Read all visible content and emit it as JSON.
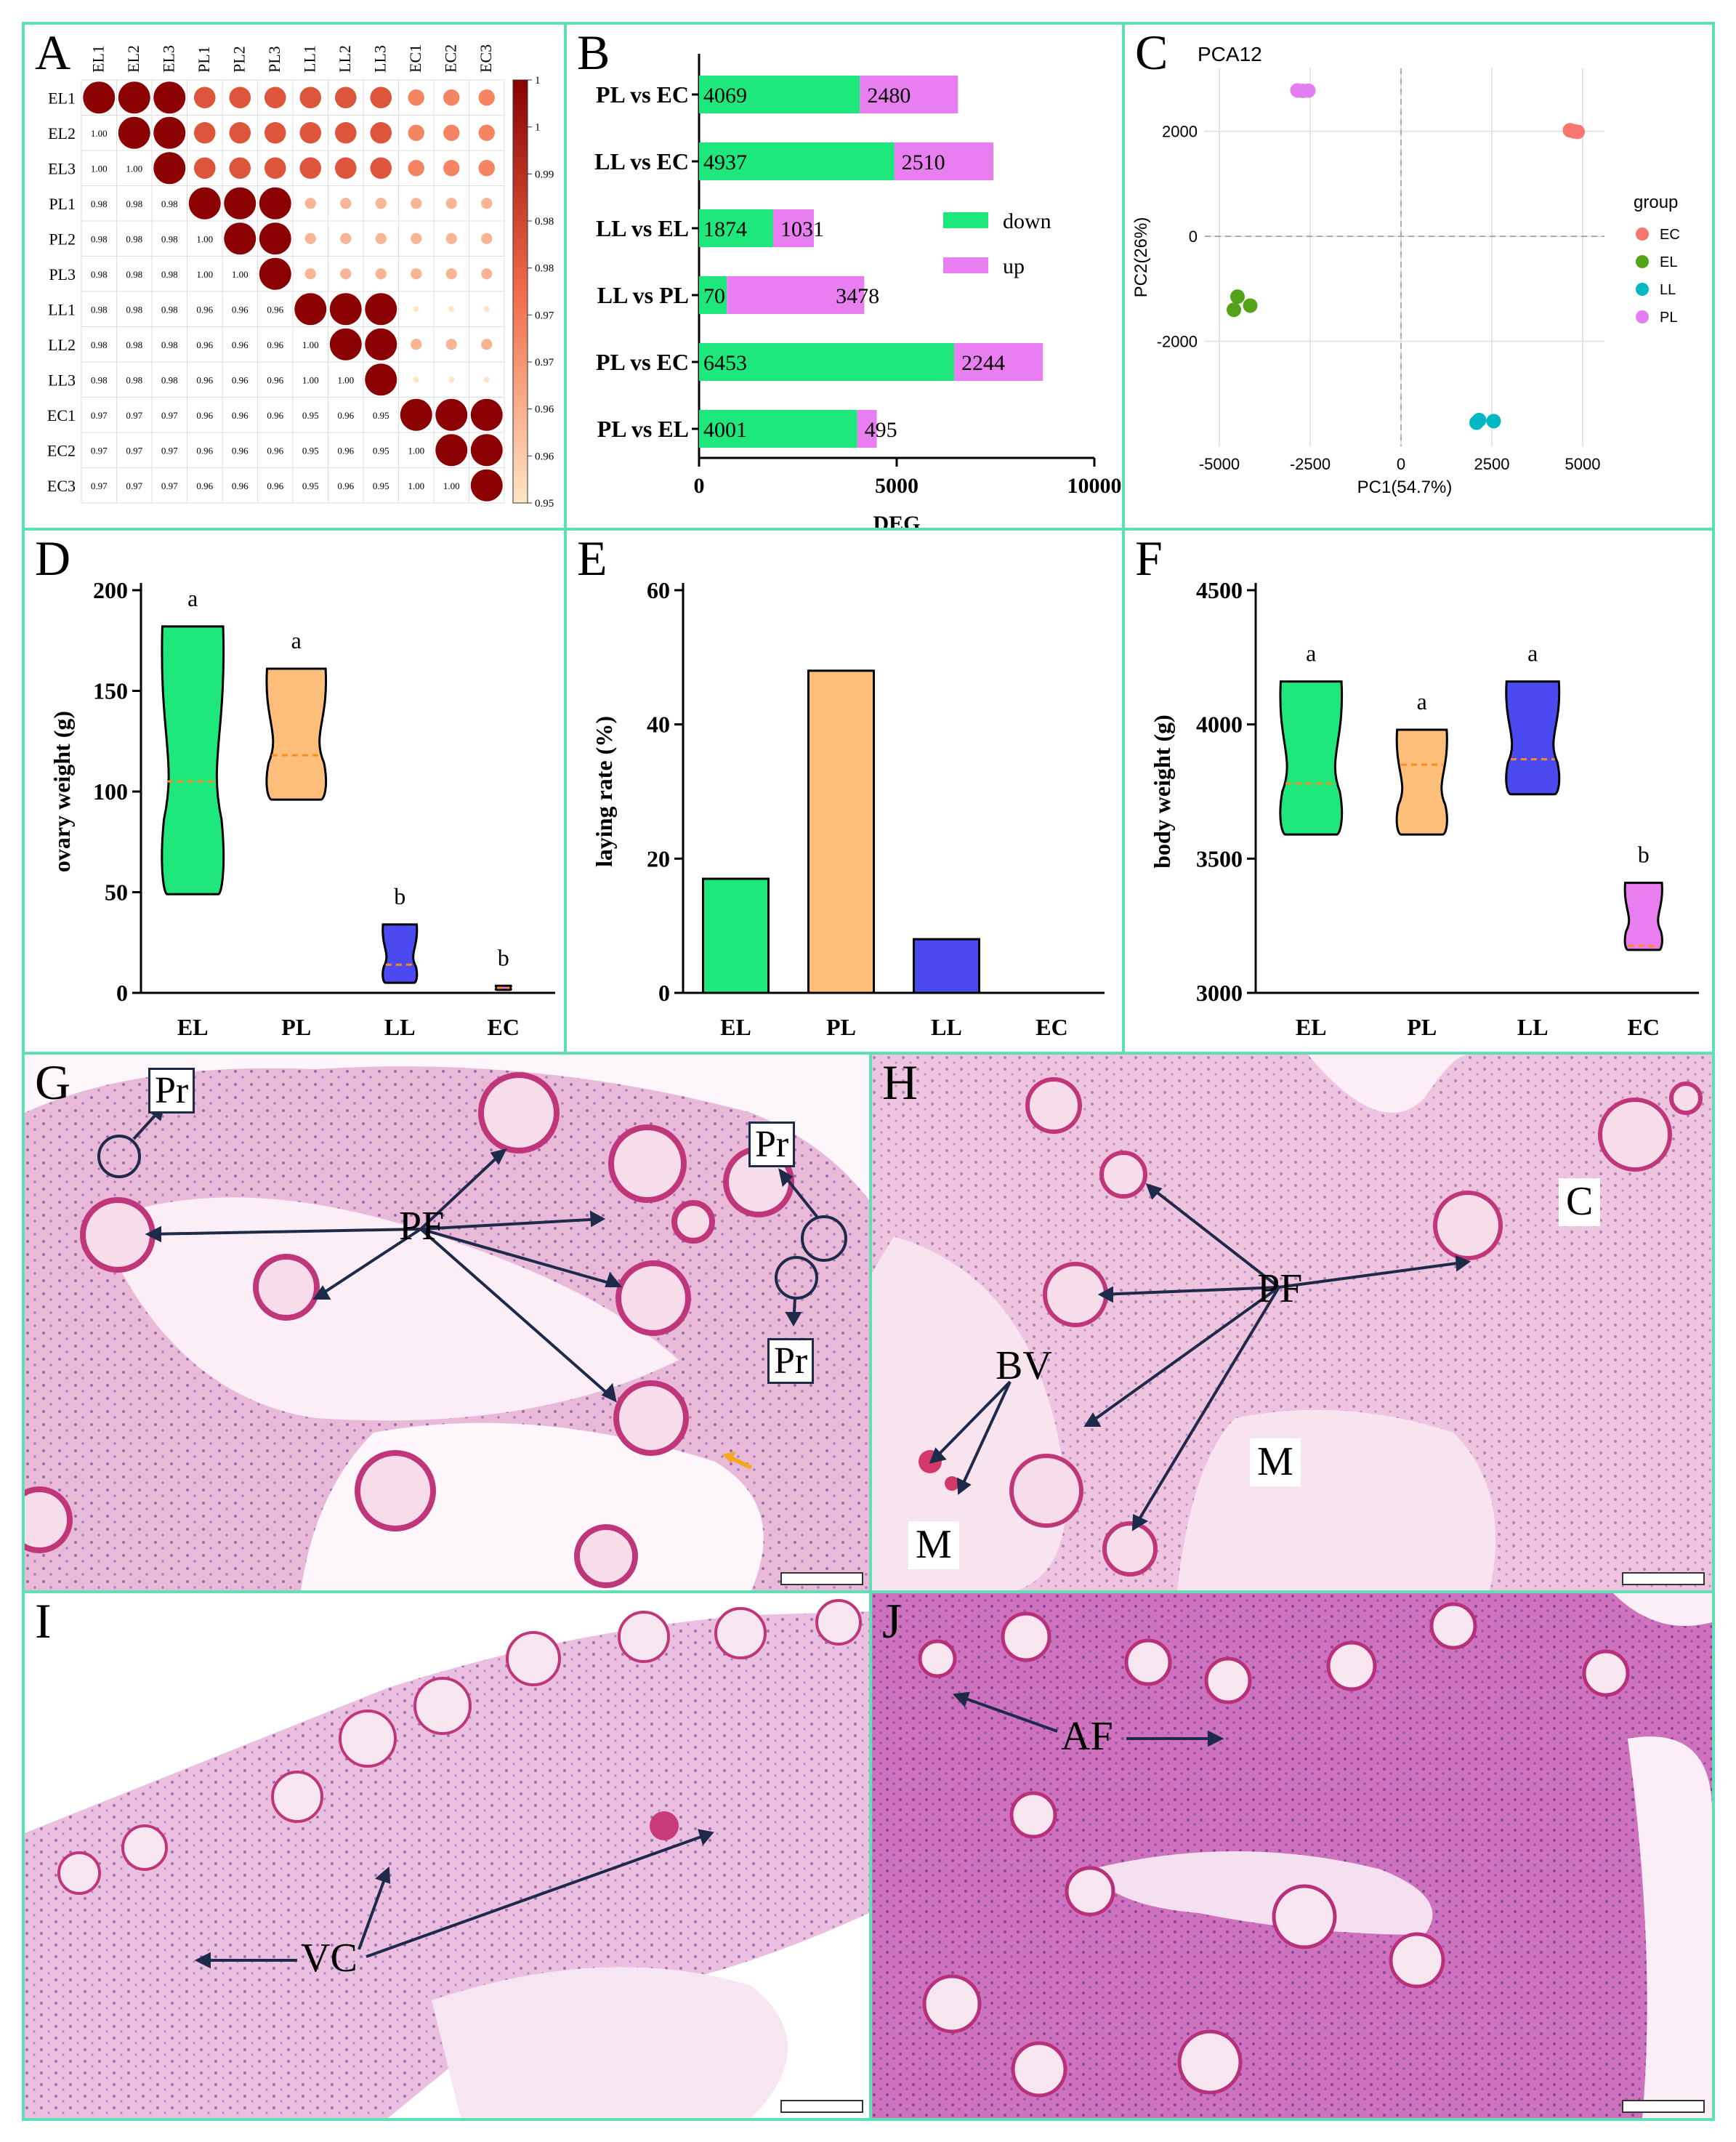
{
  "panels": {
    "A": {
      "label": "A",
      "samples": [
        "EL1",
        "EL2",
        "EL3",
        "PL1",
        "PL2",
        "PL3",
        "LL1",
        "LL2",
        "LL3",
        "EC1",
        "EC2",
        "EC3"
      ],
      "lower": [
        [],
        [
          "1.00"
        ],
        [
          "1.00",
          "1.00"
        ],
        [
          "0.98",
          "0.98",
          "0.98"
        ],
        [
          "0.98",
          "0.98",
          "0.98",
          "1.00"
        ],
        [
          "0.98",
          "0.98",
          "0.98",
          "1.00",
          "1.00"
        ],
        [
          "0.98",
          "0.98",
          "0.98",
          "0.96",
          "0.96",
          "0.96"
        ],
        [
          "0.98",
          "0.98",
          "0.98",
          "0.96",
          "0.96",
          "0.96",
          "1.00"
        ],
        [
          "0.98",
          "0.98",
          "0.98",
          "0.96",
          "0.96",
          "0.96",
          "1.00",
          "1.00"
        ],
        [
          "0.97",
          "0.97",
          "0.97",
          "0.96",
          "0.96",
          "0.96",
          "0.95",
          "0.96",
          "0.95"
        ],
        [
          "0.97",
          "0.97",
          "0.97",
          "0.96",
          "0.96",
          "0.96",
          "0.95",
          "0.96",
          "0.95",
          "1.00"
        ],
        [
          "0.97",
          "0.97",
          "0.97",
          "0.96",
          "0.96",
          "0.96",
          "0.95",
          "0.96",
          "0.95",
          "1.00",
          "1.00"
        ]
      ],
      "colorbar_ticks": [
        "1",
        "1",
        "0.99",
        "0.98",
        "0.98",
        "0.97",
        "0.97",
        "0.96",
        "0.96",
        "0.95"
      ],
      "colors": {
        "high": "#8b0000",
        "mid": "#f26b4a",
        "low": "#fde6c4"
      }
    },
    "B": {
      "label": "B"
    },
    "C": {
      "label": "C"
    },
    "D": {
      "label": "D"
    },
    "E": {
      "label": "E"
    },
    "F": {
      "label": "F"
    },
    "G": {
      "label": "G",
      "pr1": "Pr",
      "pr2": "Pr",
      "pr3": "Pr",
      "pf": "PF"
    },
    "H": {
      "label": "H",
      "pf": "PF",
      "bv": "BV",
      "m1": "M",
      "m2": "M",
      "c": "C"
    },
    "I": {
      "label": "I",
      "vc": "VC"
    },
    "J": {
      "label": "J",
      "af": "AF"
    }
  },
  "chart_data": [
    {
      "panel": "A",
      "type": "heatmap",
      "title": "",
      "rows": [
        "EL1",
        "EL2",
        "EL3",
        "PL1",
        "PL2",
        "PL3",
        "LL1",
        "LL2",
        "LL3",
        "EC1",
        "EC2",
        "EC3"
      ],
      "cols": [
        "EL1",
        "EL2",
        "EL3",
        "PL1",
        "PL2",
        "PL3",
        "LL1",
        "LL2",
        "LL3",
        "EC1",
        "EC2",
        "EC3"
      ],
      "value_range": [
        0.95,
        1.0
      ]
    },
    {
      "panel": "B",
      "type": "bar",
      "orientation": "horizontal",
      "stacked": true,
      "categories": [
        "PL vs EC",
        "LL vs EC",
        "LL vs EL",
        "LL vs PL",
        "PL vs EC",
        "PL vs EL"
      ],
      "series": [
        {
          "name": "down",
          "color": "#1ee87c",
          "values": [
            4069,
            4937,
            1874,
            701,
            6453,
            4001
          ]
        },
        {
          "name": "up",
          "color": "#e97ef0",
          "values": [
            2480,
            2510,
            1031,
            3478,
            2244,
            495
          ]
        }
      ],
      "xlabel": "DEG",
      "xlim": [
        0,
        10000
      ],
      "xticks": [
        "0",
        "5000",
        "10000"
      ],
      "legend": "right"
    },
    {
      "panel": "C",
      "type": "scatter",
      "title": "PCA12",
      "xlabel": "PC1(54.7%)",
      "ylabel": "PC2(26%)",
      "xlim": [
        -5400,
        5600
      ],
      "ylim": [
        -4000,
        3200
      ],
      "xticks": [
        "-5000",
        "-2500",
        "0",
        "2500",
        "5000"
      ],
      "yticks": [
        "2000",
        "0",
        "-2000"
      ],
      "legend_title": "group",
      "series": [
        {
          "name": "EC",
          "color": "#f8766d",
          "points": [
            [
              4650,
              2020
            ],
            [
              4760,
              2000
            ],
            [
              4860,
              1990
            ]
          ]
        },
        {
          "name": "EL",
          "color": "#53a318",
          "points": [
            [
              -4500,
              -1150
            ],
            [
              -4600,
              -1400
            ],
            [
              -4150,
              -1320
            ]
          ]
        },
        {
          "name": "LL",
          "color": "#00b8c4",
          "points": [
            [
              2080,
              -3550
            ],
            [
              2150,
              -3500
            ],
            [
              2550,
              -3520
            ]
          ]
        },
        {
          "name": "PL",
          "color": "#e27ef0",
          "points": [
            [
              -2850,
              2780
            ],
            [
              -2700,
              2770
            ],
            [
              -2550,
              2775
            ]
          ]
        }
      ]
    },
    {
      "panel": "D",
      "type": "violin",
      "ylabel": "ovary weight (g)",
      "ylim": [
        0,
        200
      ],
      "yticks": [
        "0",
        "50",
        "100",
        "150",
        "200"
      ],
      "categories": [
        "EL",
        "PL",
        "LL",
        "EC"
      ],
      "letters": [
        "a",
        "a",
        "b",
        "b"
      ],
      "colors": [
        "#1ee87c",
        "#ffbf7a",
        "#4a4af0",
        "#e97ef0"
      ],
      "min": [
        49,
        96,
        5,
        1.5
      ],
      "max": [
        182,
        161,
        34,
        3.5
      ],
      "median": [
        105,
        118,
        14,
        2.5
      ]
    },
    {
      "panel": "E",
      "type": "bar",
      "ylabel": "laying rate (%)",
      "ylim": [
        0,
        60
      ],
      "yticks": [
        "0",
        "20",
        "40",
        "60"
      ],
      "categories": [
        "EL",
        "PL",
        "LL",
        "EC"
      ],
      "values": [
        17,
        48,
        8,
        0
      ],
      "colors": [
        "#1ee87c",
        "#ffbf7a",
        "#4a4af0",
        "#e97ef0"
      ]
    },
    {
      "panel": "F",
      "type": "violin",
      "ylabel": "body weight (g)",
      "ylim": [
        3000,
        4500
      ],
      "yticks": [
        "3000",
        "3500",
        "4000",
        "4500"
      ],
      "categories": [
        "EL",
        "PL",
        "LL",
        "EC"
      ],
      "letters": [
        "a",
        "a",
        "a",
        "b"
      ],
      "colors": [
        "#1ee87c",
        "#ffbf7a",
        "#4a4af0",
        "#e97ef0"
      ],
      "min": [
        3590,
        3590,
        3740,
        3160
      ],
      "max": [
        4160,
        3980,
        4160,
        3410
      ],
      "median": [
        3780,
        3850,
        3870,
        3175
      ]
    }
  ]
}
